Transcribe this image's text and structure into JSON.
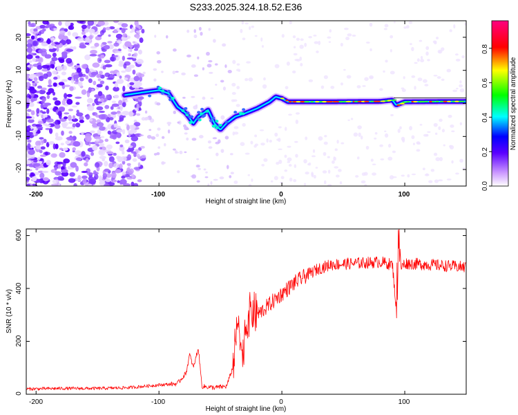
{
  "title": "S233.2025.324.18.52.E36",
  "chart_data": [
    {
      "type": "heatmap",
      "xlabel": "Height of straight line (km)",
      "ylabel": "Frequency (Hz)",
      "xlim": [
        -208,
        150
      ],
      "ylim": [
        -25,
        25
      ],
      "xticks": [
        "-200",
        "-100",
        "0",
        "100"
      ],
      "yticks": [
        "20",
        "10",
        "0",
        "-10",
        "-20"
      ],
      "colorbar": {
        "label": "Normalized spectral amplitude",
        "range": [
          0.0,
          0.96
        ],
        "ticks": [
          "0.0",
          "0.2",
          "0.4",
          "0.6",
          "0.8"
        ]
      },
      "signal_track": [
        {
          "x": -128,
          "y": 2.5
        },
        {
          "x": -110,
          "y": 3.5
        },
        {
          "x": -100,
          "y": 4.0
        },
        {
          "x": -92,
          "y": 3.0
        },
        {
          "x": -85,
          "y": -1.0
        },
        {
          "x": -78,
          "y": -3.0
        },
        {
          "x": -72,
          "y": -6.0
        },
        {
          "x": -68,
          "y": -4.0
        },
        {
          "x": -60,
          "y": -2.0
        },
        {
          "x": -55,
          "y": -6.0
        },
        {
          "x": -50,
          "y": -8.0
        },
        {
          "x": -45,
          "y": -6.0
        },
        {
          "x": -38,
          "y": -4.0
        },
        {
          "x": -30,
          "y": -3.0
        },
        {
          "x": -20,
          "y": -1.5
        },
        {
          "x": -10,
          "y": 0.5
        },
        {
          "x": -5,
          "y": 2.0
        },
        {
          "x": 0,
          "y": 1.5
        },
        {
          "x": 5,
          "y": 0.5
        },
        {
          "x": 40,
          "y": 0.5
        },
        {
          "x": 80,
          "y": 0.6
        },
        {
          "x": 90,
          "y": 1.0
        },
        {
          "x": 93,
          "y": -0.5
        },
        {
          "x": 100,
          "y": 0.5
        },
        {
          "x": 150,
          "y": 0.6
        }
      ]
    },
    {
      "type": "line",
      "xlabel": "Height of straight line (km)",
      "ylabel": "SNR (10 * v/v)",
      "xlim": [
        -208,
        150
      ],
      "ylim": [
        0,
        625
      ],
      "xticks": [
        "-200",
        "-100",
        "0",
        "100"
      ],
      "yticks": [
        "600",
        "400",
        "200",
        "0"
      ],
      "color": "#ff0000",
      "series": [
        {
          "name": "SNR",
          "x": [
            -208,
            -180,
            -150,
            -125,
            -100,
            -85,
            -78,
            -75,
            -72,
            -68,
            -65,
            -55,
            -45,
            -40,
            -35,
            -32,
            -30,
            -25,
            -20,
            -10,
            0,
            10,
            20,
            30,
            40,
            60,
            80,
            90,
            93,
            95,
            97,
            100,
            120,
            150
          ],
          "y": [
            20,
            22,
            22,
            25,
            35,
            40,
            80,
            150,
            100,
            175,
            30,
            25,
            30,
            100,
            300,
            120,
            250,
            320,
            300,
            340,
            380,
            420,
            450,
            475,
            490,
            495,
            500,
            490,
            330,
            600,
            480,
            495,
            490,
            480
          ]
        }
      ]
    }
  ]
}
